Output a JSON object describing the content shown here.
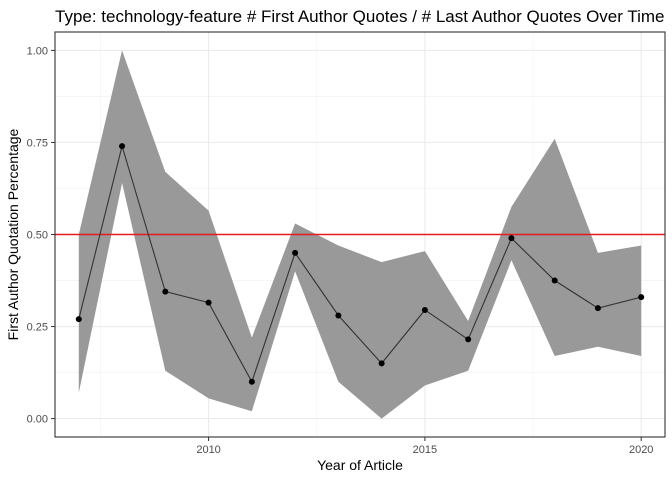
{
  "chart_data": {
    "type": "line",
    "title": "Type: technology-feature # First Author Quotes /  # Last Author Quotes Over Time",
    "xlabel": "Year of Article",
    "ylabel": "First Author Quotation Percentage",
    "xlim": [
      2006.45,
      2020.55
    ],
    "ylim": [
      -0.05,
      1.05
    ],
    "x_ticks": [
      2010,
      2015,
      2020
    ],
    "x_tick_labels": [
      "2010",
      "2015",
      "2020"
    ],
    "y_ticks": [
      0,
      0.25,
      0.5,
      0.75,
      1.0
    ],
    "y_tick_labels": [
      "0.00",
      "0.25",
      "0.50",
      "0.75",
      "1.00"
    ],
    "grid": true,
    "reference_line": {
      "y": 0.5,
      "color": "#e41a1c"
    },
    "series": [
      {
        "x": [
          2007,
          2008,
          2009,
          2010,
          2011,
          2012,
          2013,
          2014,
          2015,
          2016,
          2017,
          2018,
          2019,
          2020
        ],
        "y": [
          0.27,
          0.74,
          0.345,
          0.315,
          0.1,
          0.45,
          0.28,
          0.15,
          0.295,
          0.215,
          0.49,
          0.375,
          0.3,
          0.33
        ],
        "lower": [
          0.07,
          0.64,
          0.13,
          0.055,
          0.02,
          0.4,
          0.1,
          0.0,
          0.09,
          0.13,
          0.43,
          0.17,
          0.195,
          0.17
        ],
        "upper": [
          0.5,
          1.0,
          0.67,
          0.565,
          0.22,
          0.53,
          0.47,
          0.425,
          0.455,
          0.265,
          0.575,
          0.76,
          0.45,
          0.47
        ],
        "color": "#333333",
        "band_color": "#999999"
      }
    ]
  }
}
